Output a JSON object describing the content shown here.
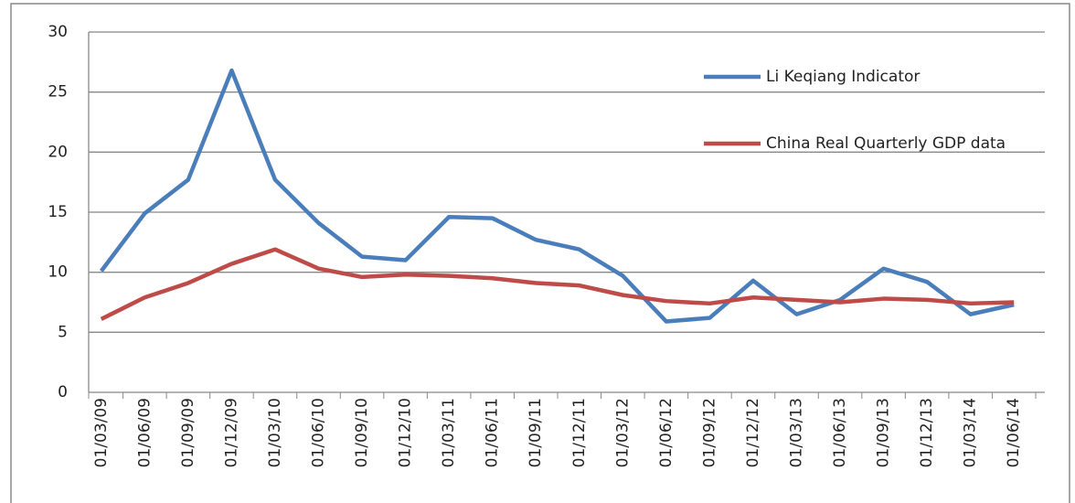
{
  "chart_data": {
    "type": "line",
    "categories": [
      "01/03/09",
      "01/06/09",
      "01/09/09",
      "01/12/09",
      "01/03/10",
      "01/06/10",
      "01/09/10",
      "01/12/10",
      "01/03/11",
      "01/06/11",
      "01/09/11",
      "01/12/11",
      "01/03/12",
      "01/06/12",
      "01/09/12",
      "01/12/12",
      "01/03/13",
      "01/06/13",
      "01/09/13",
      "01/12/13",
      "01/03/14",
      "01/06/14"
    ],
    "series": [
      {
        "name": "Li Keqiang Indicator",
        "color": "#4a7ebb",
        "values": [
          10.1,
          14.9,
          17.7,
          26.8,
          17.7,
          14.1,
          11.3,
          11.0,
          14.6,
          14.5,
          12.7,
          11.9,
          9.7,
          5.9,
          6.2,
          9.3,
          6.5,
          7.7,
          10.3,
          9.2,
          6.5,
          7.3
        ]
      },
      {
        "name": "China Real Quarterly GDP data",
        "color": "#be4b48",
        "values": [
          6.1,
          7.9,
          9.1,
          10.7,
          11.9,
          10.3,
          9.6,
          9.8,
          9.7,
          9.5,
          9.1,
          8.9,
          8.1,
          7.6,
          7.4,
          7.9,
          7.7,
          7.5,
          7.8,
          7.7,
          7.4,
          7.5
        ]
      }
    ],
    "ylim": [
      0,
      30
    ],
    "yticks": [
      0,
      5,
      10,
      15,
      20,
      25,
      30
    ],
    "grid": true
  }
}
